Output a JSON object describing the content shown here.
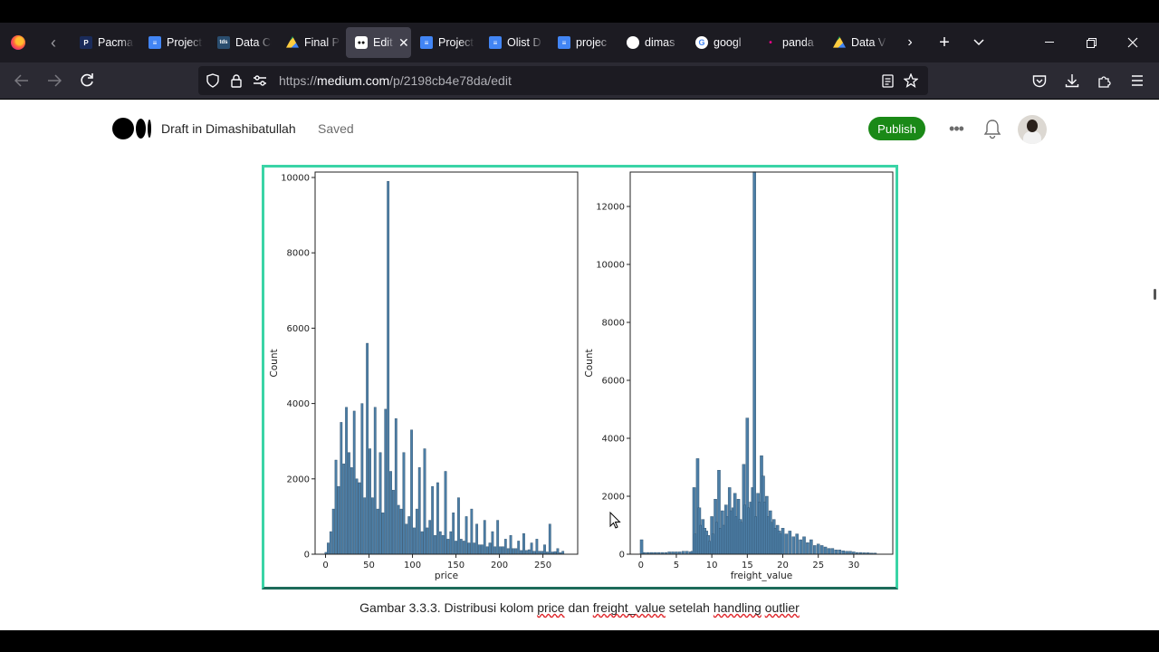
{
  "browser": {
    "tabs": [
      {
        "title": "Pacman",
        "favicon": "pac",
        "glyph": "P"
      },
      {
        "title": "Project",
        "favicon": "doc",
        "glyph": "≡"
      },
      {
        "title": "Data Co",
        "favicon": "tds",
        "glyph": "tds"
      },
      {
        "title": "Final P",
        "favicon": "drive",
        "glyph": ""
      },
      {
        "title": "Edit",
        "favicon": "med",
        "glyph": "●●",
        "active": true
      },
      {
        "title": "Project",
        "favicon": "doc",
        "glyph": "≡"
      },
      {
        "title": "Olist D",
        "favicon": "doc",
        "glyph": "≡"
      },
      {
        "title": "projec",
        "favicon": "doc",
        "glyph": "≡"
      },
      {
        "title": "dimas",
        "favicon": "gh",
        "glyph": ""
      },
      {
        "title": "googl",
        "favicon": "goog",
        "glyph": "G"
      },
      {
        "title": "panda",
        "favicon": "pd",
        "glyph": "•"
      },
      {
        "title": "Data V",
        "favicon": "drive",
        "glyph": ""
      }
    ],
    "url_prefix": "https://",
    "url_host": "medium.com",
    "url_path": "/p/2198cb4e78da/edit"
  },
  "editor": {
    "title": "Draft in Dimashibatullah",
    "status": "Saved",
    "publish_label": "Publish",
    "more_label": "•••"
  },
  "caption": {
    "prefix": "Gambar 3.3.3. Distribusi kolom ",
    "w1": "price",
    "mid1": " dan ",
    "w2": "freight_value",
    "mid2": " setelah ",
    "w3": "handling",
    "sp": " ",
    "w4": "outlier"
  },
  "chart_data": [
    {
      "type": "bar",
      "xlabel": "price",
      "ylabel": "Count",
      "xlim": [
        -12,
        290
      ],
      "ylim": [
        0,
        10000
      ],
      "xticks": [
        0,
        50,
        100,
        150,
        200,
        250
      ],
      "yticks": [
        0,
        2000,
        4000,
        6000,
        8000,
        10000
      ],
      "color": "#4c7ea6",
      "x": [
        0.5,
        3,
        6,
        9,
        12,
        15,
        18,
        21,
        24,
        27,
        30,
        33,
        36,
        39,
        42,
        45,
        48,
        51,
        54,
        57,
        60,
        63,
        66,
        69,
        72,
        75,
        78,
        81,
        84,
        87,
        90,
        93,
        96,
        99,
        102,
        105,
        108,
        111,
        114,
        117,
        120,
        123,
        126,
        129,
        132,
        135,
        138,
        141,
        144,
        147,
        150,
        153,
        156,
        159,
        162,
        165,
        168,
        171,
        174,
        177,
        180,
        183,
        186,
        189,
        192,
        195,
        198,
        201,
        204,
        207,
        210,
        213,
        216,
        219,
        222,
        225,
        228,
        231,
        234,
        237,
        240,
        243,
        246,
        249,
        252,
        255,
        258,
        261,
        264,
        267,
        270,
        273
      ],
      "values": [
        50,
        300,
        600,
        1200,
        2500,
        1800,
        3500,
        2400,
        3900,
        2700,
        2300,
        3800,
        2000,
        1900,
        4000,
        1500,
        5600,
        2800,
        1500,
        3900,
        1200,
        2700,
        1100,
        3850,
        9900,
        2200,
        1700,
        3600,
        1300,
        1200,
        2700,
        800,
        1000,
        3300,
        700,
        1200,
        2300,
        600,
        2800,
        700,
        900,
        1800,
        500,
        1900,
        600,
        500,
        2200,
        400,
        600,
        1100,
        350,
        1500,
        400,
        350,
        1000,
        300,
        1200,
        300,
        800,
        250,
        250,
        900,
        200,
        300,
        600,
        200,
        900,
        200,
        200,
        400,
        150,
        500,
        150,
        150,
        350,
        100,
        550,
        100,
        120,
        300,
        80,
        400,
        80,
        80,
        250,
        60,
        800,
        60,
        70,
        150,
        40,
        80
      ]
    },
    {
      "type": "bar",
      "xlabel": "freight_value",
      "ylabel": "Count",
      "xlim": [
        -1.5,
        35.5
      ],
      "ylim": [
        0,
        13000
      ],
      "xticks": [
        0,
        5,
        10,
        15,
        20,
        25,
        30
      ],
      "yticks": [
        0,
        2000,
        4000,
        6000,
        8000,
        10000,
        12000
      ],
      "color": "#4c7ea6",
      "x": [
        0.1,
        0.5,
        1,
        1.5,
        2,
        2.5,
        3,
        3.5,
        4,
        4.5,
        5,
        5.5,
        6,
        6.5,
        7,
        7.25,
        7.5,
        7.75,
        8,
        8.25,
        8.5,
        8.75,
        9,
        9.25,
        9.5,
        9.75,
        10,
        10.25,
        10.5,
        10.75,
        11,
        11.25,
        11.5,
        11.75,
        12,
        12.25,
        12.5,
        12.75,
        13,
        13.25,
        13.5,
        13.75,
        14,
        14.25,
        14.5,
        14.75,
        15,
        15.25,
        15.5,
        15.75,
        16,
        16.25,
        16.5,
        16.75,
        17,
        17.25,
        17.5,
        17.75,
        18,
        18.25,
        18.5,
        18.75,
        19,
        19.25,
        19.5,
        19.75,
        20,
        20.5,
        21,
        21.5,
        22,
        22.5,
        23,
        23.5,
        24,
        24.5,
        25,
        25.5,
        26,
        26.5,
        27,
        27.5,
        28,
        28.5,
        29,
        29.5,
        30,
        30.5,
        31,
        31.5,
        32,
        32.5,
        33
      ],
      "values": [
        500,
        60,
        60,
        60,
        60,
        60,
        60,
        60,
        80,
        80,
        80,
        80,
        100,
        100,
        80,
        100,
        2300,
        700,
        3300,
        1600,
        1000,
        1200,
        900,
        800,
        650,
        450,
        1300,
        700,
        1900,
        1100,
        2900,
        900,
        1500,
        1000,
        1700,
        1300,
        2300,
        1500,
        1600,
        2100,
        1300,
        1900,
        1200,
        1100,
        3100,
        1700,
        4700,
        1600,
        1800,
        2300,
        13200,
        1300,
        2100,
        1800,
        3400,
        2700,
        1800,
        2000,
        1300,
        1500,
        1100,
        1200,
        900,
        1000,
        800,
        700,
        900,
        700,
        800,
        600,
        700,
        500,
        600,
        400,
        500,
        300,
        350,
        300,
        250,
        200,
        200,
        150,
        150,
        120,
        100,
        100,
        80,
        60,
        60,
        50,
        50,
        40,
        40
      ]
    }
  ]
}
